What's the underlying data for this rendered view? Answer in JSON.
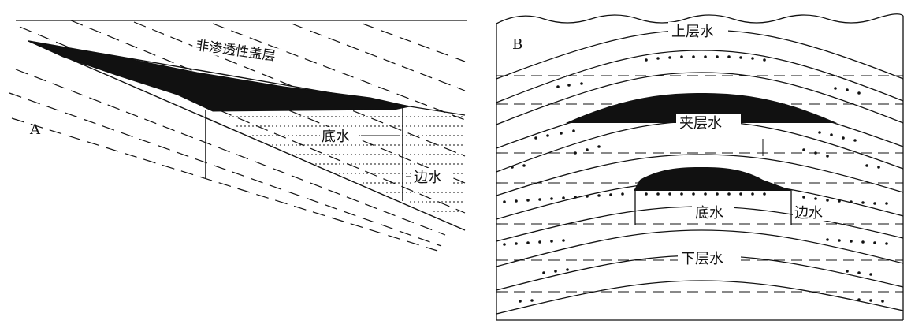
{
  "panel_a": {
    "letter": "A",
    "cap_rock_label": "非渗透性盖层",
    "bottom_water_label": "底水",
    "edge_water_label": "边水"
  },
  "panel_b": {
    "letter": "B",
    "upper_water_label": "上层水",
    "interlayer_water_label": "夹层水",
    "bottom_water_label": "底水",
    "edge_water_label": "边水",
    "lower_water_label": "下层水"
  },
  "colors": {
    "ink": "#111111",
    "background": "#ffffff"
  }
}
